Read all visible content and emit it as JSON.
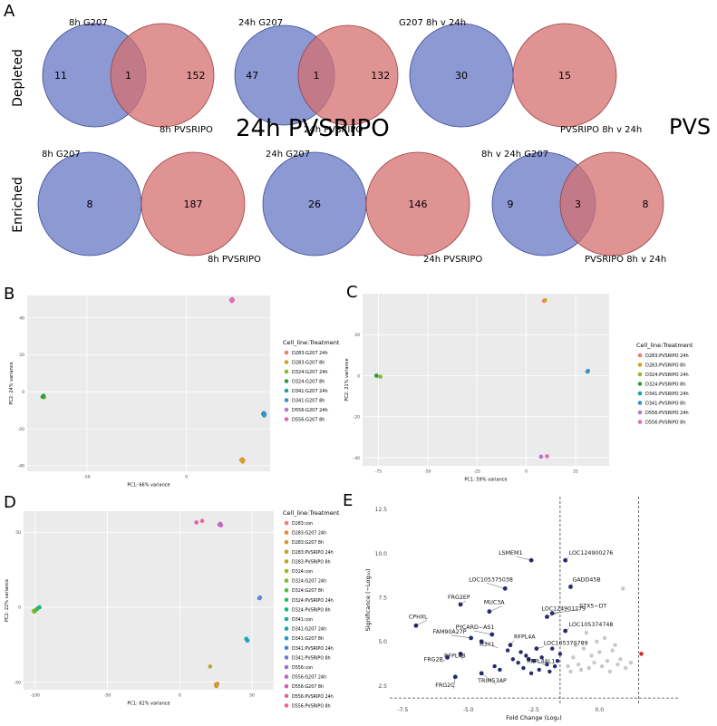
{
  "panels": {
    "A": "A",
    "B": "B",
    "C": "C",
    "D": "D",
    "E": "E"
  },
  "chart_data": [
    {
      "type": "venn",
      "panel": "A",
      "row_labels": [
        "Depleted",
        "Enriched"
      ],
      "stray_text": {
        "a": "24h PVSRIPO",
        "b": "PVS"
      },
      "venns": [
        {
          "row": "Depleted",
          "left_label": "8h G207",
          "right_label": "8h PVSRIPO",
          "left_only": 11,
          "overlap": 1,
          "right_only": 152
        },
        {
          "row": "Depleted",
          "left_label": "24h G207",
          "right_label": "24h PVSRIPO",
          "left_only": 47,
          "overlap": 1,
          "right_only": 132
        },
        {
          "row": "Depleted",
          "left_label": "G207 8h v 24h",
          "right_label": "PVSRIPO 8h v 24h",
          "left_only": 30,
          "overlap": null,
          "right_only": 15
        },
        {
          "row": "Enriched",
          "left_label": "8h G207",
          "right_label": "8h PVSRIPO",
          "left_only": 8,
          "overlap": null,
          "right_only": 187
        },
        {
          "row": "Enriched",
          "left_label": "24h G207",
          "right_label": "24h PVSRIPO",
          "left_only": 26,
          "overlap": null,
          "right_only": 146
        },
        {
          "row": "Enriched",
          "left_label": "8h v 24h G207",
          "right_label": "PVSRIPO 8h v 24h",
          "left_only": 9,
          "overlap": 3,
          "right_only": 8
        }
      ],
      "colors": {
        "left": "#6677c4",
        "right": "#d4706f"
      }
    },
    {
      "type": "scatter",
      "panel": "B",
      "xlabel": "PC1: 66% variance",
      "ylabel": "PC2: 24% variance",
      "xlim": [
        -80,
        42
      ],
      "ylim": [
        -43,
        52
      ],
      "xticks": [
        -50,
        0
      ],
      "yticks": [
        -40,
        -20,
        0,
        20,
        40
      ],
      "legend_title": "Cell_line:Treatment",
      "series": [
        {
          "name": "D283:G207 24h",
          "color": "#f07e6e",
          "points": [
            [
              28,
              -36.5
            ],
            [
              28.5,
              -37.2
            ]
          ]
        },
        {
          "name": "D283:G207 8h",
          "color": "#d6a11f",
          "points": [
            [
              27.5,
              -37
            ],
            [
              28.2,
              -37.8
            ]
          ]
        },
        {
          "name": "D324:G207 24h",
          "color": "#8ab92b",
          "points": [
            [
              -72,
              -2.5
            ],
            [
              -71.5,
              -3
            ]
          ]
        },
        {
          "name": "D324:G207 8h",
          "color": "#2e9b3f",
          "points": [
            [
              -72.3,
              -2.8
            ],
            [
              -71.8,
              -2.2
            ]
          ]
        },
        {
          "name": "D341:G207 24h",
          "color": "#1ba39c",
          "points": [
            [
              38.5,
              -12
            ],
            [
              39,
              -12.8
            ]
          ]
        },
        {
          "name": "D341:G207 8h",
          "color": "#3a8fcb",
          "points": [
            [
              38.8,
              -11.5
            ],
            [
              39.3,
              -12.2
            ]
          ]
        },
        {
          "name": "D556:G207 24h",
          "color": "#b678cc",
          "points": [
            [
              22.5,
              49.5
            ],
            [
              23,
              50
            ]
          ]
        },
        {
          "name": "D556:G207 8h",
          "color": "#e26bb3",
          "points": [
            [
              22.8,
              49
            ],
            [
              23.2,
              49.6
            ]
          ]
        }
      ]
    },
    {
      "type": "scatter",
      "panel": "C",
      "xlabel": "PC1: 59% variance",
      "ylabel": "PC2: 21% variance",
      "xlim": [
        -83,
        42
      ],
      "ylim": [
        -44,
        40
      ],
      "xticks": [
        -75,
        -50,
        -25,
        0,
        25
      ],
      "yticks": [
        -40,
        -20,
        0,
        20
      ],
      "legend_title": "Cell_line:Treatment",
      "series": [
        {
          "name": "D283:PVSRIPO 24h",
          "color": "#f07e6e",
          "points": [
            [
              9,
              36.5
            ]
          ]
        },
        {
          "name": "D283:PVSRIPO 8h",
          "color": "#d6a11f",
          "points": [
            [
              9.5,
              36.8
            ]
          ]
        },
        {
          "name": "D324:PVSRIPO 24h",
          "color": "#8ab92b",
          "points": [
            [
              -74,
              -0.5
            ]
          ]
        },
        {
          "name": "D324:PVSRIPO 8h",
          "color": "#2e9b3f",
          "points": [
            [
              -76,
              0
            ]
          ]
        },
        {
          "name": "D341:PVSRIPO 24h",
          "color": "#1ba39c",
          "points": [
            [
              31,
              2
            ]
          ]
        },
        {
          "name": "D341:PVSRIPO 8h",
          "color": "#3a8fcb",
          "points": [
            [
              31.3,
              2.3
            ]
          ]
        },
        {
          "name": "D556:PVSRIPO 24h",
          "color": "#b678cc",
          "points": [
            [
              7.5,
              -39.5
            ]
          ]
        },
        {
          "name": "D556:PVSRIPO 8h",
          "color": "#e26bb3",
          "points": [
            [
              10.5,
              -39.3
            ]
          ]
        }
      ]
    },
    {
      "type": "scatter",
      "panel": "D",
      "xlabel": "PC1: 62% variance",
      "ylabel": "PC2: 22% variance",
      "xlim": [
        -108,
        65
      ],
      "ylim": [
        -55,
        64
      ],
      "xticks": [
        -100,
        -50,
        0,
        50
      ],
      "yticks": [
        -50,
        0,
        50
      ],
      "legend_title": "Cell_line:Treatment",
      "series": [
        {
          "name": "D283:con",
          "color": "#f07e6e",
          "points": [
            [
              25,
              -51.5
            ]
          ]
        },
        {
          "name": "D283:G207 24h",
          "color": "#e8893a",
          "points": [
            [
              25.5,
              -52
            ]
          ]
        },
        {
          "name": "D283:G207 8h",
          "color": "#d89531",
          "points": [
            [
              26,
              -51
            ]
          ]
        },
        {
          "name": "D283:PVSRIPO 24h",
          "color": "#c99f27",
          "points": [
            [
              25.3,
              -52.6
            ]
          ]
        },
        {
          "name": "D283:PVSRIPO 8h",
          "color": "#b4aa20",
          "points": [
            [
              21,
              -39.5
            ]
          ]
        },
        {
          "name": "D324:con",
          "color": "#9eb41e",
          "points": [
            [
              -101,
              -2.5
            ]
          ]
        },
        {
          "name": "D324:G207 24h",
          "color": "#7fba26",
          "points": [
            [
              -100.5,
              -3
            ]
          ]
        },
        {
          "name": "D324:G207 8h",
          "color": "#57bb35",
          "points": [
            [
              -99.5,
              -1.8
            ]
          ]
        },
        {
          "name": "D324:PVSRIPO 24h",
          "color": "#2fbb5d",
          "points": [
            [
              -98.5,
              -1
            ]
          ]
        },
        {
          "name": "D324:PVSRIPO 8h",
          "color": "#17b581",
          "points": [
            [
              -97,
              0
            ]
          ]
        },
        {
          "name": "D341:con",
          "color": "#13b09c",
          "points": [
            [
              46,
              -21
            ]
          ]
        },
        {
          "name": "D341:G207 24h",
          "color": "#13a8b3",
          "points": [
            [
              46.5,
              -21.8
            ]
          ]
        },
        {
          "name": "D341:G207 8h",
          "color": "#1f9bc7",
          "points": [
            [
              46.8,
              -22.2
            ]
          ]
        },
        {
          "name": "D341:PVSRIPO 24h",
          "color": "#3a8ad6",
          "points": [
            [
              55,
              6
            ]
          ]
        },
        {
          "name": "D341:PVSRIPO 8h",
          "color": "#6f7ad8",
          "points": [
            [
              55.5,
              6.5
            ]
          ]
        },
        {
          "name": "D556:con",
          "color": "#9b6dd2",
          "points": [
            [
              27.5,
              55
            ]
          ]
        },
        {
          "name": "D556:G207 24h",
          "color": "#bd64c6",
          "points": [
            [
              28,
              55.6
            ]
          ]
        },
        {
          "name": "D556:G207 8h",
          "color": "#d35fb8",
          "points": [
            [
              28.5,
              54.6
            ]
          ]
        },
        {
          "name": "D556:PVSRIPO 24h",
          "color": "#e260a6",
          "points": [
            [
              11.5,
              56.5
            ]
          ]
        },
        {
          "name": "D556:PVSRIPO 8h",
          "color": "#e86893",
          "points": [
            [
              15.5,
              57.5
            ]
          ]
        }
      ]
    },
    {
      "type": "scatter",
      "panel": "E",
      "subtype": "volcano",
      "xlabel": "Fold Change (Log₂)",
      "ylabel": "Significance (−Log₁₀)",
      "xlim": [
        -8,
        3
      ],
      "ylim": [
        1.5,
        13.2
      ],
      "xticks": [
        -7.5,
        -5.0,
        -2.5,
        0.0
      ],
      "yticks": [
        2.5,
        5.0,
        7.5,
        10.0,
        12.5
      ],
      "xtick_labels": [
        "-7.5",
        "-5.0",
        "-2.5",
        "0.0"
      ],
      "ytick_labels": [
        "2.5",
        "5.0",
        "7.5",
        "10.0",
        "12.5"
      ],
      "thresholds": {
        "x": [
          -1.5,
          1.5
        ],
        "y": 1.8
      },
      "colors": {
        "significant": "#262a6e",
        "ns": "#c8c8c8",
        "up": "#d42a2a"
      },
      "labeled_points": [
        {
          "name": "LSMEM1",
          "x": -2.6,
          "y": 9.6
        },
        {
          "name": "LOC124900276",
          "x": -1.3,
          "y": 9.6
        },
        {
          "name": "LOC105375038",
          "x": -3.6,
          "y": 8.0
        },
        {
          "name": "GADD45B",
          "x": -1.1,
          "y": 8.1
        },
        {
          "name": "FRG2EP",
          "x": -5.3,
          "y": 7.1
        },
        {
          "name": "MUC3A",
          "x": -4.2,
          "y": 6.7
        },
        {
          "name": "STX5−DT",
          "x": -1.8,
          "y": 6.6
        },
        {
          "name": "LOC124901279",
          "x": -2.0,
          "y": 6.4
        },
        {
          "name": "CPHXL",
          "x": -7.0,
          "y": 5.9
        },
        {
          "name": "LOC105374748",
          "x": -1.3,
          "y": 5.6
        },
        {
          "name": "PYCARD−AS1",
          "x": -4.1,
          "y": 5.4
        },
        {
          "name": "FAM90A27P",
          "x": -4.9,
          "y": 5.2
        },
        {
          "name": "H3Y1",
          "x": -4.5,
          "y": 5.0
        },
        {
          "name": "RFPL4A",
          "x": -3.4,
          "y": 4.8
        },
        {
          "name": "LOC105370789",
          "x": -2.4,
          "y": 4.6
        },
        {
          "name": "RFPL4B",
          "x": -5.3,
          "y": 4.3
        },
        {
          "name": "FRG2B",
          "x": -5.8,
          "y": 4.1
        },
        {
          "name": "RFPL4AL1",
          "x": -2.7,
          "y": 4.0
        },
        {
          "name": "TRIM53AP",
          "x": -4.5,
          "y": 3.2
        },
        {
          "name": "FRG2C",
          "x": -5.5,
          "y": 3.0
        }
      ],
      "significant_points": [
        [
          -3.5,
          4.5
        ],
        [
          -3.3,
          4.0
        ],
        [
          -3.1,
          3.8
        ],
        [
          -2.9,
          3.5
        ],
        [
          -2.8,
          4.2
        ],
        [
          -2.5,
          3.9
        ],
        [
          -2.3,
          3.4
        ],
        [
          -2.2,
          4.1
        ],
        [
          -2.0,
          3.7
        ],
        [
          -1.9,
          3.3
        ],
        [
          -1.8,
          4.6
        ],
        [
          -1.7,
          3.6
        ],
        [
          -1.6,
          3.9
        ],
        [
          -4.0,
          3.6
        ],
        [
          -3.8,
          3.4
        ],
        [
          -1.5,
          4.3
        ],
        [
          -2.6,
          3.2
        ],
        [
          -3.0,
          4.4
        ]
      ],
      "ns_points": [
        [
          -1.2,
          3.6
        ],
        [
          -1.0,
          4.1
        ],
        [
          -0.8,
          3.7
        ],
        [
          -0.6,
          4.6
        ],
        [
          -0.4,
          3.5
        ],
        [
          -0.3,
          4.2
        ],
        [
          -0.2,
          3.8
        ],
        [
          -0.1,
          5.0
        ],
        [
          0.0,
          4.4
        ],
        [
          0.1,
          3.6
        ],
        [
          0.2,
          5.2
        ],
        [
          0.3,
          3.9
        ],
        [
          0.5,
          4.5
        ],
        [
          0.7,
          3.7
        ],
        [
          0.8,
          4.0
        ],
        [
          0.9,
          8.0
        ],
        [
          1.0,
          3.5
        ],
        [
          0.4,
          3.3
        ],
        [
          -0.5,
          5.5
        ],
        [
          -0.7,
          3.4
        ],
        [
          -0.9,
          4.8
        ],
        [
          0.6,
          4.8
        ],
        [
          -1.1,
          3.3
        ],
        [
          1.2,
          3.8
        ]
      ],
      "up_points": [
        [
          1.6,
          4.3
        ]
      ]
    }
  ]
}
